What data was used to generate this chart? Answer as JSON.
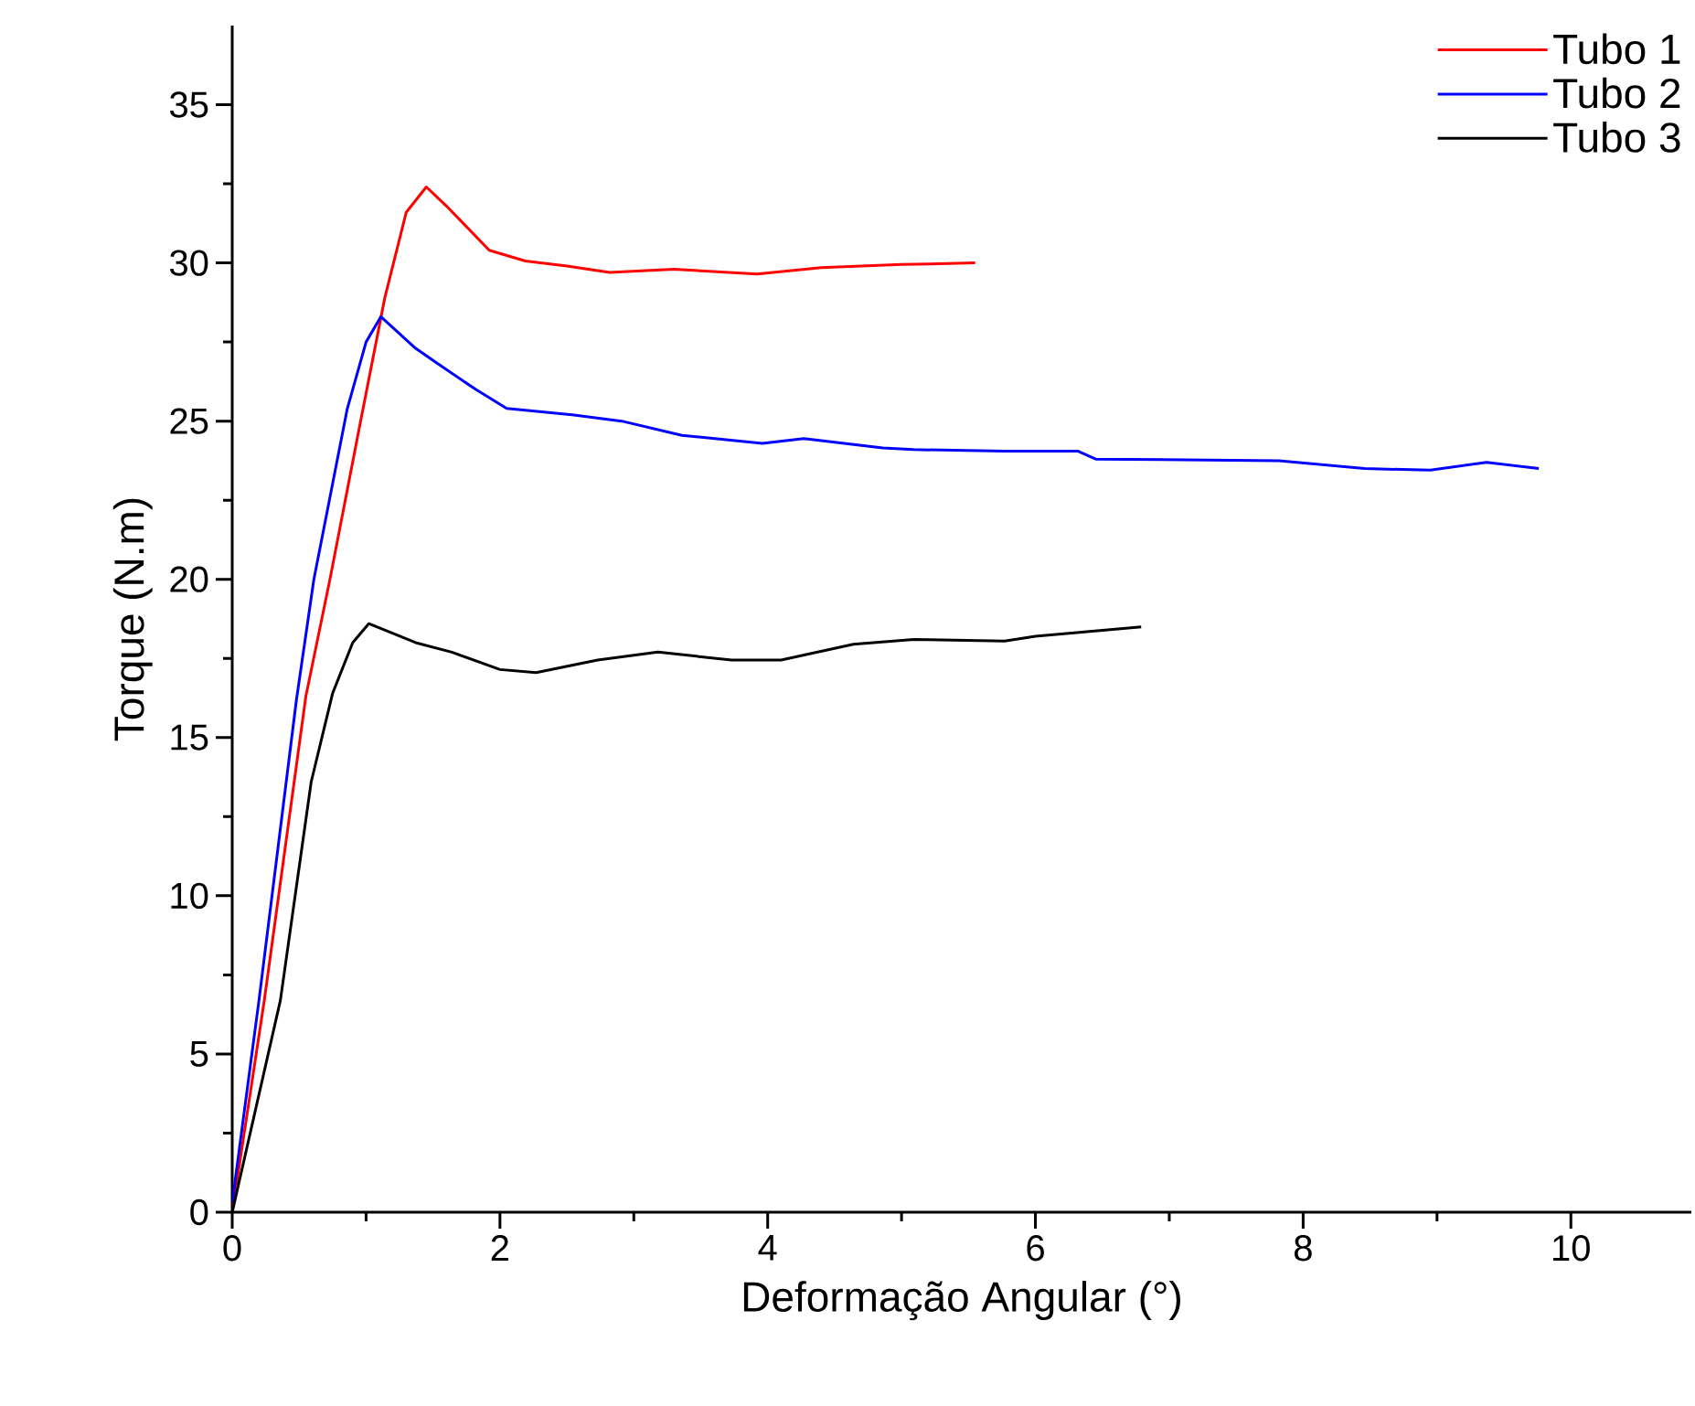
{
  "chart_data": {
    "type": "line",
    "xlabel": "Deformação Angular (°)",
    "ylabel": "Torque (N.m)",
    "xlim": [
      0,
      10.9
    ],
    "ylim": [
      0,
      37.5
    ],
    "xticks": [
      0,
      2,
      4,
      6,
      8,
      10
    ],
    "yticks": [
      0,
      5,
      10,
      15,
      20,
      25,
      30,
      35
    ],
    "legend": "top right",
    "grid": false,
    "line_style": "solid",
    "marker": "none",
    "series": [
      {
        "name": "Tubo 1",
        "color": "#ff0000",
        "x": [
          0,
          0.24,
          0.55,
          0.73,
          0.95,
          1.14,
          1.3,
          1.45,
          1.6,
          1.92,
          2.19,
          2.5,
          2.82,
          3.3,
          3.92,
          4.4,
          5.0,
          5.55
        ],
        "values": [
          0,
          6.7,
          16.3,
          20,
          24.8,
          28.9,
          31.6,
          32.4,
          31.8,
          30.4,
          30.06,
          29.9,
          29.7,
          29.8,
          29.65,
          29.85,
          29.95,
          30.0
        ]
      },
      {
        "name": "Tubo 2",
        "color": "#0000ff",
        "x": [
          0,
          0.2,
          0.48,
          0.61,
          0.86,
          1.0,
          1.11,
          1.37,
          1.54,
          1.82,
          2.05,
          2.54,
          2.91,
          3.36,
          3.96,
          4.27,
          4.86,
          5.09,
          5.77,
          6.32,
          6.45,
          7.82,
          8.46,
          8.95,
          9.37,
          9.76
        ],
        "values": [
          0.3,
          6.7,
          16.2,
          20,
          25.4,
          27.5,
          28.3,
          27.3,
          26.8,
          26.0,
          25.4,
          25.2,
          25.0,
          24.55,
          24.3,
          24.45,
          24.15,
          24.1,
          24.05,
          24.05,
          23.8,
          23.75,
          23.5,
          23.45,
          23.7,
          23.5
        ]
      },
      {
        "name": "Tubo 3",
        "color": "#000000",
        "x": [
          0,
          0.36,
          0.59,
          0.75,
          0.9,
          1.02,
          1.37,
          1.64,
          2.0,
          2.27,
          2.73,
          3.18,
          3.73,
          4.1,
          4.64,
          5.09,
          5.77,
          6.0,
          6.79
        ],
        "values": [
          0,
          6.7,
          13.6,
          16.4,
          18.0,
          18.6,
          18.0,
          17.7,
          17.15,
          17.05,
          17.45,
          17.7,
          17.45,
          17.45,
          17.95,
          18.1,
          18.05,
          18.2,
          18.5
        ]
      }
    ]
  }
}
